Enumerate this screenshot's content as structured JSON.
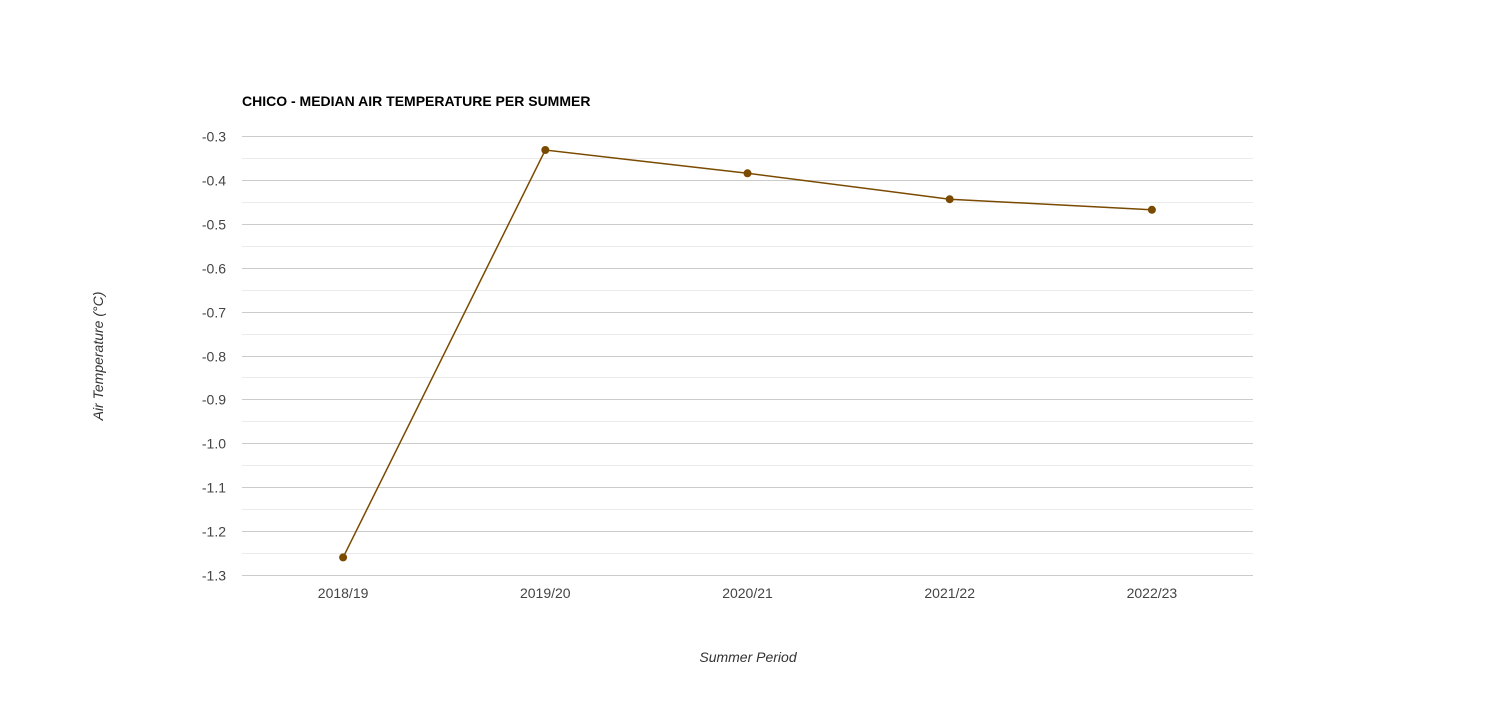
{
  "chart_data": {
    "type": "line",
    "title": "CHICO - MEDIAN AIR TEMPERATURE PER SUMMER",
    "xlabel": "Summer Period",
    "ylabel": "Air Temperature (°C)",
    "categories": [
      "2018/19",
      "2019/20",
      "2020/21",
      "2021/22",
      "2022/23"
    ],
    "series": [
      {
        "values": [
          -1.26,
          -0.332,
          -0.385,
          -0.444,
          -0.468
        ],
        "color": "#7a4a00"
      }
    ],
    "ylim": [
      -1.3,
      -0.3
    ],
    "yticks": [
      "-0.3",
      "-0.4",
      "-0.5",
      "-0.6",
      "-0.7",
      "-0.8",
      "-0.9",
      "-1.0",
      "-1.1",
      "-1.2",
      "-1.3"
    ],
    "grid": true,
    "legend": "none"
  }
}
